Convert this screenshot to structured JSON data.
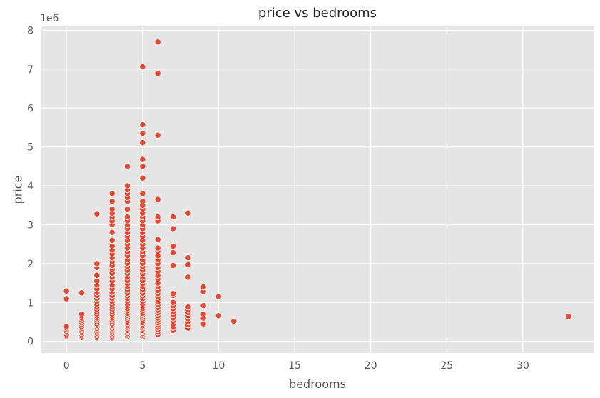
{
  "chart_data": {
    "type": "scatter",
    "title": "price vs bedrooms",
    "xlabel": "bedrooms",
    "ylabel": "price",
    "y_offset_label": "1e6",
    "xlim": [
      -1.65,
      34.65
    ],
    "ylim": [
      -300000,
      8100000
    ],
    "x_ticks": [
      0,
      5,
      10,
      15,
      20,
      25,
      30
    ],
    "y_ticks": [
      0,
      1,
      2,
      3,
      4,
      5,
      6,
      7,
      8
    ],
    "y_tick_multiplier": 1000000,
    "grid": true,
    "background": "#E5E5E5",
    "point_color": "#E24A33",
    "point_edge_color": "#FFFFFF",
    "series": [
      {
        "points": [
          [
            0,
            140000
          ],
          [
            0,
            180000
          ],
          [
            0,
            235000
          ],
          [
            0,
            260000
          ],
          [
            0,
            300000
          ],
          [
            0,
            345000
          ],
          [
            0,
            380000
          ],
          [
            0,
            1095000
          ],
          [
            0,
            1295000
          ],
          [
            1,
            100000
          ],
          [
            1,
            140000
          ],
          [
            1,
            180000
          ],
          [
            1,
            220000
          ],
          [
            1,
            260000
          ],
          [
            1,
            300000
          ],
          [
            1,
            340000
          ],
          [
            1,
            380000
          ],
          [
            1,
            430000
          ],
          [
            1,
            480000
          ],
          [
            1,
            540000
          ],
          [
            1,
            600000
          ],
          [
            1,
            650000
          ],
          [
            1,
            700000
          ],
          [
            1,
            1247000
          ],
          [
            2,
            90000
          ],
          [
            2,
            130000
          ],
          [
            2,
            170000
          ],
          [
            2,
            210000
          ],
          [
            2,
            250000
          ],
          [
            2,
            290000
          ],
          [
            2,
            330000
          ],
          [
            2,
            370000
          ],
          [
            2,
            410000
          ],
          [
            2,
            450000
          ],
          [
            2,
            500000
          ],
          [
            2,
            550000
          ],
          [
            2,
            600000
          ],
          [
            2,
            650000
          ],
          [
            2,
            700000
          ],
          [
            2,
            760000
          ],
          [
            2,
            820000
          ],
          [
            2,
            880000
          ],
          [
            2,
            950000
          ],
          [
            2,
            1020000
          ],
          [
            2,
            1100000
          ],
          [
            2,
            1180000
          ],
          [
            2,
            1260000
          ],
          [
            2,
            1350000
          ],
          [
            2,
            1450000
          ],
          [
            2,
            1550000
          ],
          [
            2,
            1700000
          ],
          [
            2,
            1900000
          ],
          [
            2,
            2000000
          ],
          [
            2,
            3280000
          ],
          [
            3,
            90000
          ],
          [
            3,
            130000
          ],
          [
            3,
            170000
          ],
          [
            3,
            210000
          ],
          [
            3,
            250000
          ],
          [
            3,
            290000
          ],
          [
            3,
            330000
          ],
          [
            3,
            370000
          ],
          [
            3,
            410000
          ],
          [
            3,
            450000
          ],
          [
            3,
            500000
          ],
          [
            3,
            550000
          ],
          [
            3,
            600000
          ],
          [
            3,
            650000
          ],
          [
            3,
            700000
          ],
          [
            3,
            760000
          ],
          [
            3,
            820000
          ],
          [
            3,
            880000
          ],
          [
            3,
            950000
          ],
          [
            3,
            1020000
          ],
          [
            3,
            1100000
          ],
          [
            3,
            1180000
          ],
          [
            3,
            1260000
          ],
          [
            3,
            1350000
          ],
          [
            3,
            1450000
          ],
          [
            3,
            1550000
          ],
          [
            3,
            1650000
          ],
          [
            3,
            1750000
          ],
          [
            3,
            1850000
          ],
          [
            3,
            1950000
          ],
          [
            3,
            2050000
          ],
          [
            3,
            2150000
          ],
          [
            3,
            2250000
          ],
          [
            3,
            2350000
          ],
          [
            3,
            2450000
          ],
          [
            3,
            2600000
          ],
          [
            3,
            2800000
          ],
          [
            3,
            3000000
          ],
          [
            3,
            3100000
          ],
          [
            3,
            3200000
          ],
          [
            3,
            3300000
          ],
          [
            3,
            3400000
          ],
          [
            3,
            3600000
          ],
          [
            3,
            3800000
          ],
          [
            4,
            120000
          ],
          [
            4,
            160000
          ],
          [
            4,
            200000
          ],
          [
            4,
            240000
          ],
          [
            4,
            280000
          ],
          [
            4,
            320000
          ],
          [
            4,
            360000
          ],
          [
            4,
            400000
          ],
          [
            4,
            440000
          ],
          [
            4,
            480000
          ],
          [
            4,
            520000
          ],
          [
            4,
            570000
          ],
          [
            4,
            620000
          ],
          [
            4,
            670000
          ],
          [
            4,
            720000
          ],
          [
            4,
            780000
          ],
          [
            4,
            840000
          ],
          [
            4,
            900000
          ],
          [
            4,
            960000
          ],
          [
            4,
            1030000
          ],
          [
            4,
            1100000
          ],
          [
            4,
            1170000
          ],
          [
            4,
            1240000
          ],
          [
            4,
            1320000
          ],
          [
            4,
            1400000
          ],
          [
            4,
            1480000
          ],
          [
            4,
            1560000
          ],
          [
            4,
            1650000
          ],
          [
            4,
            1740000
          ],
          [
            4,
            1830000
          ],
          [
            4,
            1920000
          ],
          [
            4,
            2010000
          ],
          [
            4,
            2100000
          ],
          [
            4,
            2200000
          ],
          [
            4,
            2300000
          ],
          [
            4,
            2400000
          ],
          [
            4,
            2500000
          ],
          [
            4,
            2600000
          ],
          [
            4,
            2700000
          ],
          [
            4,
            2800000
          ],
          [
            4,
            2900000
          ],
          [
            4,
            3000000
          ],
          [
            4,
            3100000
          ],
          [
            4,
            3200000
          ],
          [
            4,
            3400000
          ],
          [
            4,
            3600000
          ],
          [
            4,
            3700000
          ],
          [
            4,
            3800000
          ],
          [
            4,
            3900000
          ],
          [
            4,
            4000000
          ],
          [
            4,
            4500000
          ],
          [
            5,
            120000
          ],
          [
            5,
            160000
          ],
          [
            5,
            200000
          ],
          [
            5,
            240000
          ],
          [
            5,
            280000
          ],
          [
            5,
            320000
          ],
          [
            5,
            360000
          ],
          [
            5,
            400000
          ],
          [
            5,
            440000
          ],
          [
            5,
            480000
          ],
          [
            5,
            520000
          ],
          [
            5,
            570000
          ],
          [
            5,
            620000
          ],
          [
            5,
            670000
          ],
          [
            5,
            720000
          ],
          [
            5,
            780000
          ],
          [
            5,
            840000
          ],
          [
            5,
            900000
          ],
          [
            5,
            960000
          ],
          [
            5,
            1030000
          ],
          [
            5,
            1100000
          ],
          [
            5,
            1170000
          ],
          [
            5,
            1240000
          ],
          [
            5,
            1320000
          ],
          [
            5,
            1400000
          ],
          [
            5,
            1480000
          ],
          [
            5,
            1560000
          ],
          [
            5,
            1650000
          ],
          [
            5,
            1740000
          ],
          [
            5,
            1830000
          ],
          [
            5,
            1920000
          ],
          [
            5,
            2010000
          ],
          [
            5,
            2100000
          ],
          [
            5,
            2200000
          ],
          [
            5,
            2300000
          ],
          [
            5,
            2400000
          ],
          [
            5,
            2500000
          ],
          [
            5,
            2600000
          ],
          [
            5,
            2700000
          ],
          [
            5,
            2800000
          ],
          [
            5,
            2900000
          ],
          [
            5,
            3000000
          ],
          [
            5,
            3100000
          ],
          [
            5,
            3200000
          ],
          [
            5,
            3300000
          ],
          [
            5,
            3400000
          ],
          [
            5,
            3500000
          ],
          [
            5,
            3600000
          ],
          [
            5,
            3800000
          ],
          [
            5,
            4200000
          ],
          [
            5,
            4500000
          ],
          [
            5,
            4680000
          ],
          [
            5,
            5110000
          ],
          [
            5,
            5350000
          ],
          [
            5,
            5570000
          ],
          [
            5,
            7060000
          ],
          [
            6,
            180000
          ],
          [
            6,
            240000
          ],
          [
            6,
            300000
          ],
          [
            6,
            360000
          ],
          [
            6,
            420000
          ],
          [
            6,
            480000
          ],
          [
            6,
            540000
          ],
          [
            6,
            600000
          ],
          [
            6,
            660000
          ],
          [
            6,
            730000
          ],
          [
            6,
            800000
          ],
          [
            6,
            870000
          ],
          [
            6,
            940000
          ],
          [
            6,
            1010000
          ],
          [
            6,
            1080000
          ],
          [
            6,
            1150000
          ],
          [
            6,
            1230000
          ],
          [
            6,
            1310000
          ],
          [
            6,
            1400000
          ],
          [
            6,
            1500000
          ],
          [
            6,
            1600000
          ],
          [
            6,
            1700000
          ],
          [
            6,
            1800000
          ],
          [
            6,
            1900000
          ],
          [
            6,
            2000000
          ],
          [
            6,
            2100000
          ],
          [
            6,
            2200000
          ],
          [
            6,
            2320000
          ],
          [
            6,
            2400000
          ],
          [
            6,
            2620000
          ],
          [
            6,
            3100000
          ],
          [
            6,
            3200000
          ],
          [
            6,
            3650000
          ],
          [
            6,
            5300000
          ],
          [
            6,
            6890000
          ],
          [
            6,
            7700000
          ],
          [
            7,
            280000
          ],
          [
            7,
            360000
          ],
          [
            7,
            440000
          ],
          [
            7,
            520000
          ],
          [
            7,
            600000
          ],
          [
            7,
            680000
          ],
          [
            7,
            760000
          ],
          [
            7,
            840000
          ],
          [
            7,
            920000
          ],
          [
            7,
            1000000
          ],
          [
            7,
            1180000
          ],
          [
            7,
            1230000
          ],
          [
            7,
            1950000
          ],
          [
            7,
            2280000
          ],
          [
            7,
            2450000
          ],
          [
            7,
            2900000
          ],
          [
            7,
            3200000
          ],
          [
            8,
            340000
          ],
          [
            8,
            420000
          ],
          [
            8,
            500000
          ],
          [
            8,
            580000
          ],
          [
            8,
            660000
          ],
          [
            8,
            740000
          ],
          [
            8,
            820000
          ],
          [
            8,
            880000
          ],
          [
            8,
            1650000
          ],
          [
            8,
            1970000
          ],
          [
            8,
            2150000
          ],
          [
            8,
            3300000
          ],
          [
            9,
            450000
          ],
          [
            9,
            600000
          ],
          [
            9,
            700000
          ],
          [
            9,
            920000
          ],
          [
            9,
            1280000
          ],
          [
            9,
            1400000
          ],
          [
            10,
            660000
          ],
          [
            10,
            1150000
          ],
          [
            11,
            520000
          ],
          [
            33,
            640000
          ]
        ]
      }
    ]
  }
}
